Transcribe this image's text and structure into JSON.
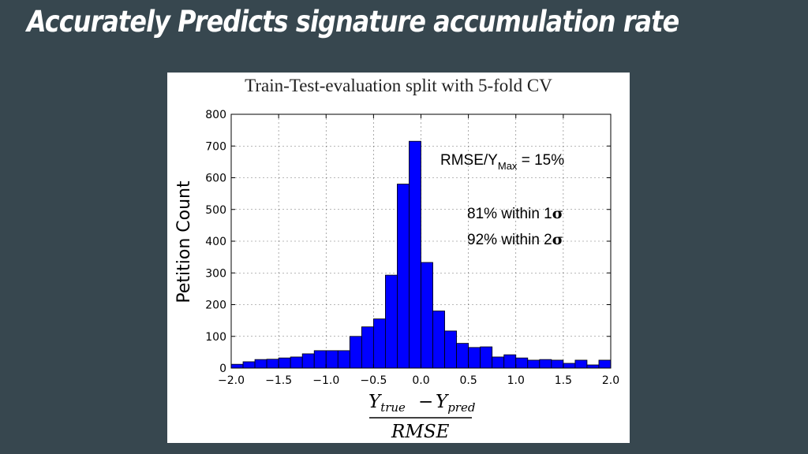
{
  "slide": {
    "title": "Accurately Predicts signature accumulation rate"
  },
  "chart_data": {
    "type": "bar",
    "subtitle": "Train-Test-evaluation split with 5-fold CV",
    "ylabel": "Petition Count",
    "xlabel_numerator": "Y_true − Y_pred",
    "xlabel_denominator": "RMSE",
    "xlim": [
      -2.0,
      2.0
    ],
    "ylim": [
      0,
      800
    ],
    "grid": true,
    "bar_color": "#0000ff",
    "bin_width": 0.125,
    "bins": [
      [
        -2.0,
        12
      ],
      [
        -1.875,
        20
      ],
      [
        -1.75,
        27
      ],
      [
        -1.625,
        28
      ],
      [
        -1.5,
        32
      ],
      [
        -1.375,
        35
      ],
      [
        -1.25,
        45
      ],
      [
        -1.125,
        55
      ],
      [
        -1.0,
        55
      ],
      [
        -0.875,
        55
      ],
      [
        -0.75,
        100
      ],
      [
        -0.625,
        130
      ],
      [
        -0.5,
        155
      ],
      [
        -0.375,
        293
      ],
      [
        -0.25,
        580
      ],
      [
        -0.125,
        715
      ],
      [
        0.0,
        333
      ],
      [
        0.125,
        180
      ],
      [
        0.25,
        117
      ],
      [
        0.375,
        78
      ],
      [
        0.5,
        65
      ],
      [
        0.625,
        67
      ],
      [
        0.75,
        35
      ],
      [
        0.875,
        42
      ],
      [
        1.0,
        32
      ],
      [
        1.125,
        25
      ],
      [
        1.25,
        27
      ],
      [
        1.375,
        25
      ],
      [
        1.5,
        15
      ],
      [
        1.625,
        25
      ],
      [
        1.75,
        10
      ],
      [
        1.875,
        25
      ]
    ],
    "xticks": [
      "−2.0",
      "−1.5",
      "−1.0",
      "−0.5",
      "0.0",
      "0.5",
      "1.0",
      "1.5",
      "2.0"
    ],
    "yticks": [
      "0",
      "100",
      "200",
      "300",
      "400",
      "500",
      "600",
      "700",
      "800"
    ],
    "annotations": {
      "rmse_prefix": "RMSE/Y",
      "rmse_sub": "Max",
      "rmse_suffix": " = 15%",
      "within1_text": "81% within 1",
      "within2_text": "92% within 2",
      "sigma": "σ"
    }
  }
}
